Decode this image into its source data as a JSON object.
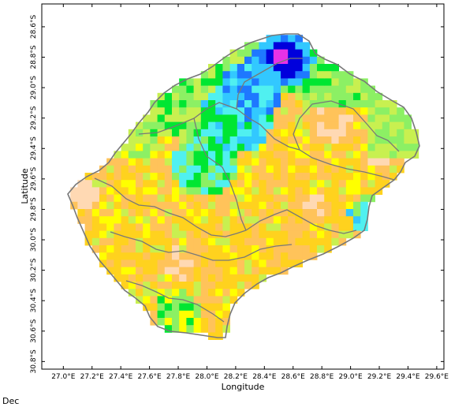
{
  "figure": {
    "xlabel": "Longitude",
    "ylabel": "Latitude",
    "month": "Dec"
  },
  "axes": {
    "x_ticks": [
      "27.0°E",
      "27.2°E",
      "27.4°E",
      "27.6°E",
      "27.8°E",
      "28.0°E",
      "28.2°E",
      "28.4°E",
      "28.6°E",
      "28.8°E",
      "29.0°E",
      "29.2°E",
      "29.4°E",
      "29.6°E"
    ],
    "y_ticks": [
      "28.6°S",
      "28.8°S",
      "29.0°S",
      "29.2°S",
      "29.4°S",
      "29.6°S",
      "29.8°S",
      "30.0°S",
      "30.2°S",
      "30.4°S",
      "30.6°S",
      "30.8°S"
    ]
  },
  "colors": {
    "light_peach": "#ffd9b3",
    "orange": "#ffc35a",
    "yellow_orange": "#ffd21e",
    "yellow": "#ffff00",
    "yellow_green": "#c8f050",
    "light_green": "#8cf064",
    "green": "#00e632",
    "cyan": "#50f0f0",
    "sky_blue": "#32c8ff",
    "blue": "#1e78ff",
    "dark_blue": "#0000dc",
    "magenta": "#e632e6",
    "boundary": "#787878"
  },
  "chart_data": {
    "type": "heatmap",
    "xlabel": "Longitude",
    "ylabel": "Latitude",
    "xlim": [
      26.85,
      29.65
    ],
    "ylim": [
      -30.85,
      -28.45
    ],
    "x_ticks": [
      "27.0°E",
      "27.2°E",
      "27.4°E",
      "27.6°E",
      "27.8°E",
      "28.0°E",
      "28.2°E",
      "28.4°E",
      "28.6°E",
      "28.8°E",
      "29.0°E",
      "29.2°E",
      "29.4°E",
      "29.6°E"
    ],
    "y_ticks": [
      "28.6°S",
      "28.8°S",
      "29.0°S",
      "29.2°S",
      "29.4°S",
      "29.6°S",
      "29.8°S",
      "30.0°S",
      "30.2°S",
      "30.4°S",
      "30.6°S",
      "30.8°S"
    ],
    "grid": false,
    "legend": "none"
  }
}
